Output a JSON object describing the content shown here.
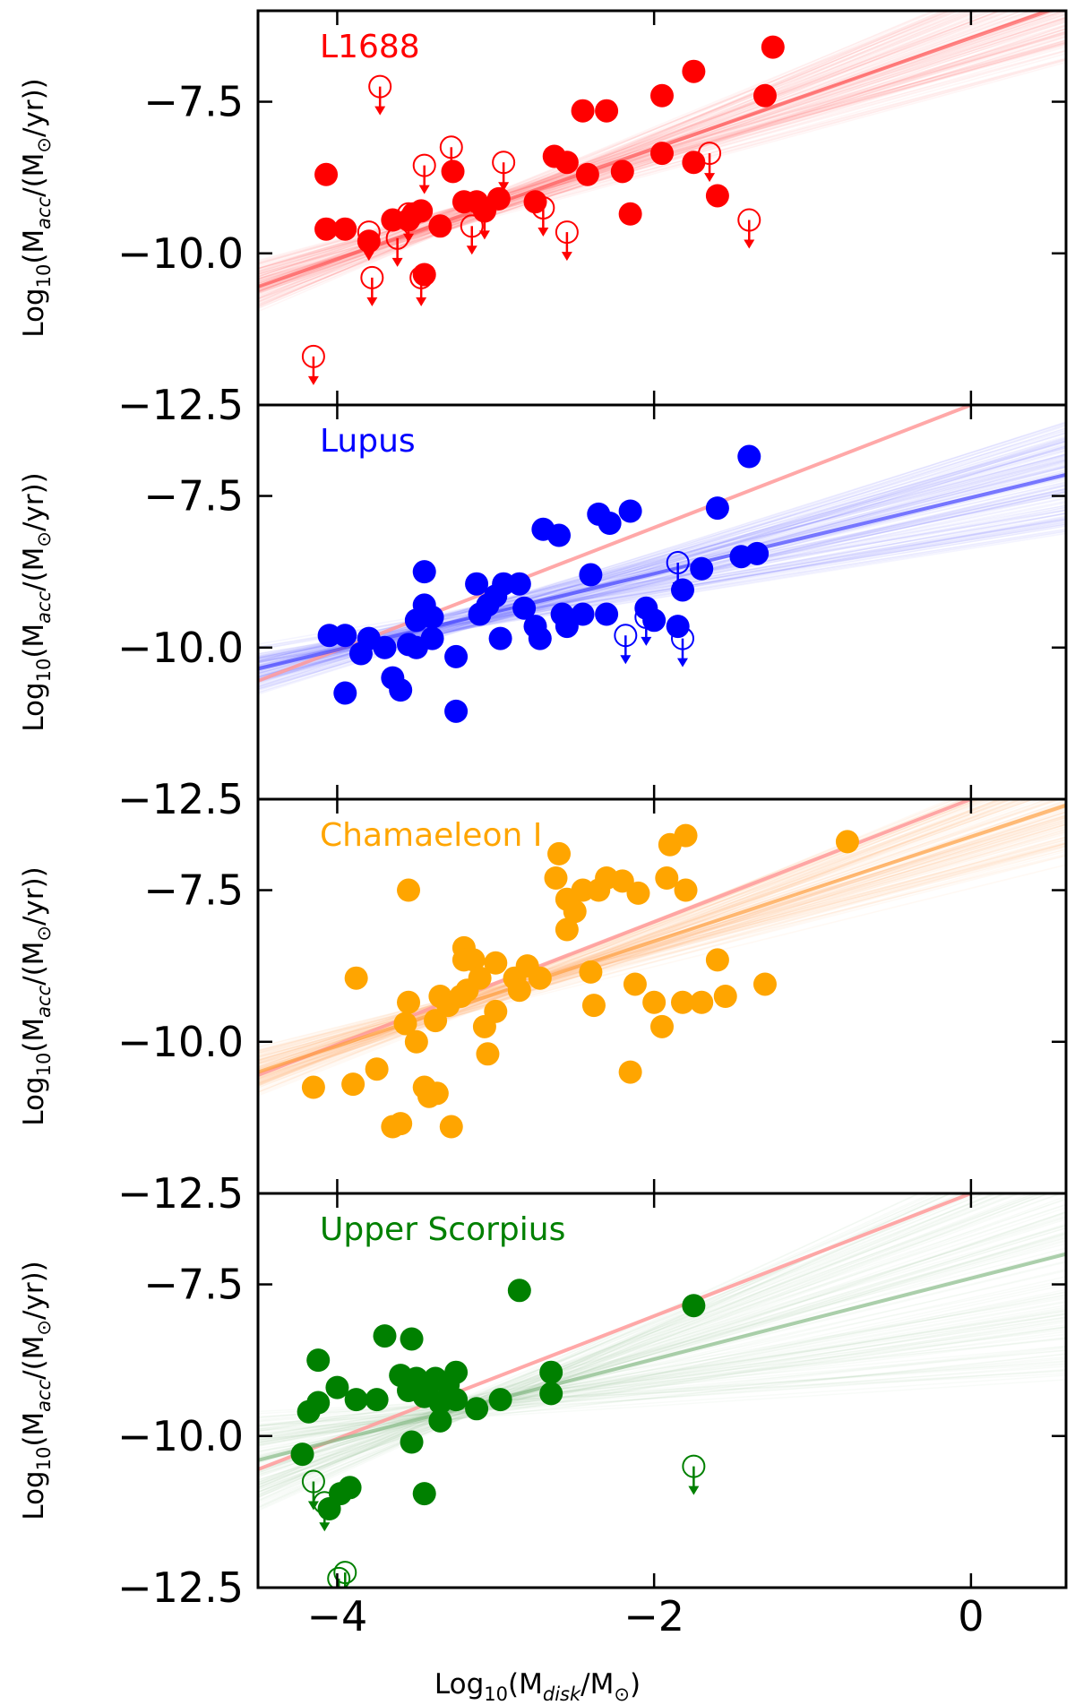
{
  "figure": {
    "x_title": {
      "prefix": "Log",
      "base": "10",
      "open": "(M",
      "sub": "disk",
      "mid": "/M",
      "sym": "⊙",
      "close": ")"
    },
    "y_title": {
      "prefix": "Log",
      "base": "10",
      "open": "(M",
      "sub": "acc",
      "mid": "/(M",
      "sym": "⊙",
      "close": "/yr))"
    },
    "y_tick_labels": [
      "−7.5",
      "−10.0",
      "−12.5"
    ],
    "x_tick_labels": [
      "−4",
      "−2",
      "0"
    ]
  },
  "chart_data": [
    {
      "type": "scatter",
      "title": "L1688",
      "color": "#ff0000",
      "x_range": [
        -4.5,
        0.6
      ],
      "y_range": [
        -12.5,
        -6.0
      ],
      "y_ticks": [
        -7.5,
        -10.0,
        -12.5
      ],
      "x_ticks": [
        -4,
        -2,
        0
      ],
      "fit": {
        "x": [
          -4.5,
          0.6
        ],
        "y": [
          -10.55,
          -5.9
        ],
        "color": "#ff5555"
      },
      "detections": [
        [
          -4.07,
          -8.7
        ],
        [
          -4.07,
          -9.6
        ],
        [
          -3.95,
          -9.6
        ],
        [
          -3.8,
          -9.8
        ],
        [
          -3.65,
          -9.45
        ],
        [
          -3.55,
          -9.45
        ],
        [
          -3.52,
          -9.35
        ],
        [
          -3.47,
          -9.3
        ],
        [
          -3.45,
          -10.35
        ],
        [
          -3.35,
          -9.55
        ],
        [
          -3.27,
          -8.65
        ],
        [
          -3.2,
          -9.15
        ],
        [
          -3.12,
          -9.15
        ],
        [
          -3.07,
          -9.3
        ],
        [
          -2.98,
          -9.1
        ],
        [
          -2.75,
          -9.15
        ],
        [
          -2.63,
          -8.4
        ],
        [
          -2.55,
          -8.5
        ],
        [
          -2.45,
          -7.65
        ],
        [
          -2.3,
          -7.65
        ],
        [
          -2.42,
          -8.7
        ],
        [
          -2.2,
          -8.65
        ],
        [
          -2.15,
          -9.35
        ],
        [
          -1.95,
          -7.4
        ],
        [
          -1.95,
          -8.35
        ],
        [
          -1.75,
          -7.0
        ],
        [
          -1.75,
          -8.5
        ],
        [
          -1.6,
          -9.05
        ],
        [
          -1.3,
          -7.4
        ],
        [
          -1.25,
          -6.6
        ]
      ],
      "upper_limits": [
        [
          -4.15,
          -11.7
        ],
        [
          -3.78,
          -10.4
        ],
        [
          -3.73,
          -7.25
        ],
        [
          -3.62,
          -9.75
        ],
        [
          -3.55,
          -9.35
        ],
        [
          -3.47,
          -10.4
        ],
        [
          -3.45,
          -8.55
        ],
        [
          -3.28,
          -8.25
        ],
        [
          -3.07,
          -9.3
        ],
        [
          -2.95,
          -8.5
        ],
        [
          -2.7,
          -9.25
        ],
        [
          -2.55,
          -9.65
        ],
        [
          -1.65,
          -8.35
        ],
        [
          -1.4,
          -9.45
        ],
        [
          -3.8,
          -9.65
        ],
        [
          -3.15,
          -9.55
        ]
      ]
    },
    {
      "type": "scatter",
      "title": "Lupus",
      "color": "#0000ff",
      "x_range": [
        -4.5,
        0.6
      ],
      "y_range": [
        -12.5,
        -6.0
      ],
      "y_ticks": [
        -7.5,
        -10.0,
        -12.5
      ],
      "x_ticks": [
        -4,
        -2,
        0
      ],
      "fit": {
        "x": [
          -4.5,
          0.6
        ],
        "y": [
          -10.35,
          -7.15
        ],
        "color": "#4444ff"
      },
      "reference_fit": {
        "x": [
          -4.5,
          0.0
        ],
        "y": [
          -10.55,
          -6.0
        ],
        "color": "#ff9999"
      },
      "detections": [
        [
          -4.05,
          -9.8
        ],
        [
          -3.95,
          -9.8
        ],
        [
          -3.85,
          -10.1
        ],
        [
          -3.95,
          -10.75
        ],
        [
          -3.8,
          -9.85
        ],
        [
          -3.7,
          -10.0
        ],
        [
          -3.65,
          -10.5
        ],
        [
          -3.6,
          -10.7
        ],
        [
          -3.55,
          -9.95
        ],
        [
          -3.5,
          -9.55
        ],
        [
          -3.5,
          -10.0
        ],
        [
          -3.45,
          -8.75
        ],
        [
          -3.45,
          -9.3
        ],
        [
          -3.4,
          -9.85
        ],
        [
          -3.4,
          -9.5
        ],
        [
          -3.25,
          -11.05
        ],
        [
          -3.25,
          -10.15
        ],
        [
          -3.12,
          -8.95
        ],
        [
          -3.1,
          -9.45
        ],
        [
          -3.05,
          -9.3
        ],
        [
          -3.0,
          -9.15
        ],
        [
          -2.97,
          -9.85
        ],
        [
          -2.95,
          -8.95
        ],
        [
          -2.85,
          -8.95
        ],
        [
          -2.82,
          -9.35
        ],
        [
          -2.75,
          -9.65
        ],
        [
          -2.72,
          -9.85
        ],
        [
          -2.7,
          -8.05
        ],
        [
          -2.6,
          -8.15
        ],
        [
          -2.58,
          -9.45
        ],
        [
          -2.55,
          -9.65
        ],
        [
          -2.45,
          -9.45
        ],
        [
          -2.4,
          -8.8
        ],
        [
          -2.35,
          -7.8
        ],
        [
          -2.3,
          -9.45
        ],
        [
          -2.28,
          -7.95
        ],
        [
          -2.15,
          -7.75
        ],
        [
          -2.05,
          -9.35
        ],
        [
          -2.0,
          -9.55
        ],
        [
          -1.85,
          -9.65
        ],
        [
          -1.82,
          -9.05
        ],
        [
          -1.7,
          -8.7
        ],
        [
          -1.6,
          -7.7
        ],
        [
          -1.45,
          -8.5
        ],
        [
          -1.4,
          -6.85
        ],
        [
          -1.35,
          -8.45
        ]
      ],
      "upper_limits": [
        [
          -2.18,
          -9.8
        ],
        [
          -2.05,
          -9.5
        ],
        [
          -1.85,
          -8.6
        ],
        [
          -1.82,
          -9.85
        ]
      ]
    },
    {
      "type": "scatter",
      "title": "Chamaeleon I",
      "color": "#ffa500",
      "x_range": [
        -4.5,
        0.6
      ],
      "y_range": [
        -12.5,
        -6.0
      ],
      "y_ticks": [
        -7.5,
        -10.0,
        -12.5
      ],
      "x_ticks": [
        -4,
        -2,
        0
      ],
      "fit": {
        "x": [
          -4.5,
          0.6
        ],
        "y": [
          -10.5,
          -6.1
        ],
        "color": "#ffa040"
      },
      "reference_fit": {
        "x": [
          -4.5,
          0.0
        ],
        "y": [
          -10.55,
          -6.0
        ],
        "color": "#ff9999"
      },
      "detections": [
        [
          -4.15,
          -10.75
        ],
        [
          -3.9,
          -10.7
        ],
        [
          -3.88,
          -8.95
        ],
        [
          -3.75,
          -10.45
        ],
        [
          -3.65,
          -11.4
        ],
        [
          -3.6,
          -11.35
        ],
        [
          -3.57,
          -9.7
        ],
        [
          -3.55,
          -7.5
        ],
        [
          -3.55,
          -9.35
        ],
        [
          -3.5,
          -10.0
        ],
        [
          -3.45,
          -10.75
        ],
        [
          -3.42,
          -10.9
        ],
        [
          -3.38,
          -9.65
        ],
        [
          -3.37,
          -10.85
        ],
        [
          -3.35,
          -9.25
        ],
        [
          -3.3,
          -9.4
        ],
        [
          -3.28,
          -11.4
        ],
        [
          -3.22,
          -9.25
        ],
        [
          -3.2,
          -8.45
        ],
        [
          -3.2,
          -8.65
        ],
        [
          -3.18,
          -9.15
        ],
        [
          -3.14,
          -8.65
        ],
        [
          -3.1,
          -8.95
        ],
        [
          -3.07,
          -9.75
        ],
        [
          -3.05,
          -10.2
        ],
        [
          -3.0,
          -8.7
        ],
        [
          -3.0,
          -9.5
        ],
        [
          -2.88,
          -8.95
        ],
        [
          -2.85,
          -9.15
        ],
        [
          -2.8,
          -8.75
        ],
        [
          -2.72,
          -8.95
        ],
        [
          -2.62,
          -7.3
        ],
        [
          -2.6,
          -6.9
        ],
        [
          -2.55,
          -8.15
        ],
        [
          -2.55,
          -7.65
        ],
        [
          -2.5,
          -7.85
        ],
        [
          -2.45,
          -7.5
        ],
        [
          -2.4,
          -8.85
        ],
        [
          -2.38,
          -9.4
        ],
        [
          -2.35,
          -7.5
        ],
        [
          -2.3,
          -7.3
        ],
        [
          -2.2,
          -7.35
        ],
        [
          -2.15,
          -10.5
        ],
        [
          -2.12,
          -9.05
        ],
        [
          -2.1,
          -7.55
        ],
        [
          -2.0,
          -9.35
        ],
        [
          -1.95,
          -9.75
        ],
        [
          -1.92,
          -7.3
        ],
        [
          -1.9,
          -6.75
        ],
        [
          -1.82,
          -9.35
        ],
        [
          -1.8,
          -7.5
        ],
        [
          -1.8,
          -6.6
        ],
        [
          -1.7,
          -9.35
        ],
        [
          -1.6,
          -8.65
        ],
        [
          -1.55,
          -9.25
        ],
        [
          -1.3,
          -9.05
        ],
        [
          -0.78,
          -6.7
        ]
      ],
      "upper_limits": []
    },
    {
      "type": "scatter",
      "title": "Upper Scorpius",
      "color": "#008000",
      "x_range": [
        -4.5,
        0.6
      ],
      "y_range": [
        -12.5,
        -6.0
      ],
      "y_ticks": [
        -7.5,
        -10.0,
        -12.5
      ],
      "x_ticks": [
        -4,
        -2,
        0
      ],
      "fit": {
        "x": [
          -4.5,
          0.6
        ],
        "y": [
          -10.4,
          -7.0
        ],
        "color": "#88bb88"
      },
      "reference_fit": {
        "x": [
          -4.5,
          0.0
        ],
        "y": [
          -10.55,
          -6.0
        ],
        "color": "#ff9999"
      },
      "detections": [
        [
          -4.22,
          -10.3
        ],
        [
          -4.18,
          -9.6
        ],
        [
          -4.12,
          -8.75
        ],
        [
          -4.12,
          -9.45
        ],
        [
          -4.0,
          -9.2
        ],
        [
          -3.98,
          -10.95
        ],
        [
          -3.92,
          -10.85
        ],
        [
          -3.88,
          -9.4
        ],
        [
          -3.75,
          -9.4
        ],
        [
          -3.7,
          -8.35
        ],
        [
          -3.6,
          -9.0
        ],
        [
          -3.55,
          -9.25
        ],
        [
          -3.53,
          -8.4
        ],
        [
          -3.53,
          -10.1
        ],
        [
          -3.5,
          -9.05
        ],
        [
          -3.45,
          -10.95
        ],
        [
          -3.45,
          -9.35
        ],
        [
          -3.42,
          -9.15
        ],
        [
          -3.38,
          -9.05
        ],
        [
          -3.35,
          -9.75
        ],
        [
          -3.35,
          -9.45
        ],
        [
          -3.3,
          -9.15
        ],
        [
          -3.25,
          -8.95
        ],
        [
          -3.25,
          -9.4
        ],
        [
          -3.12,
          -9.55
        ],
        [
          -2.97,
          -9.4
        ],
        [
          -2.85,
          -7.6
        ],
        [
          -2.65,
          -9.3
        ],
        [
          -2.65,
          -8.95
        ],
        [
          -1.75,
          -7.85
        ],
        [
          -4.05,
          -11.2
        ]
      ],
      "upper_limits": [
        [
          -4.15,
          -10.75
        ],
        [
          -4.08,
          -11.1
        ],
        [
          -3.99,
          -12.35
        ],
        [
          -3.95,
          -12.25
        ],
        [
          -1.75,
          -10.5
        ]
      ]
    }
  ]
}
